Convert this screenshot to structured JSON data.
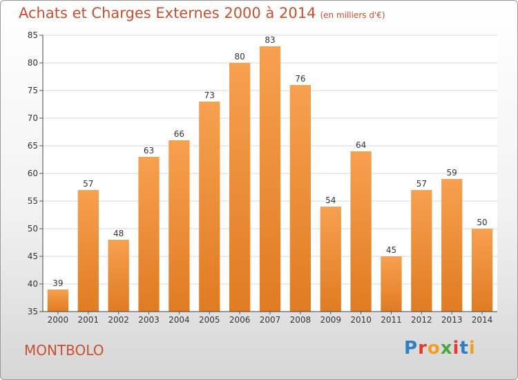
{
  "title": "Achats et Charges Externes 2000 à 2014",
  "unit": "(en milliers d'€)",
  "commune": "MONTBOLO",
  "logo": "Proxiti",
  "colors": {
    "bar_top": "#f7a04f",
    "bar_bottom": "#e07b22",
    "title": "#c94f2e",
    "grid": "#d8d8d8"
  },
  "chart_data": {
    "type": "bar",
    "title": "Achats et Charges Externes 2000 à 2014",
    "ylabel": "",
    "xlabel": "",
    "categories": [
      "2000",
      "2001",
      "2002",
      "2003",
      "2004",
      "2005",
      "2006",
      "2007",
      "2008",
      "2009",
      "2010",
      "2011",
      "2012",
      "2013",
      "2014"
    ],
    "values": [
      39,
      57,
      48,
      63,
      66,
      73,
      80,
      83,
      76,
      54,
      64,
      45,
      57,
      59,
      50
    ],
    "ylim": [
      35,
      85
    ],
    "yticks": [
      35,
      40,
      45,
      50,
      55,
      60,
      65,
      70,
      75,
      80,
      85
    ],
    "grid": true
  }
}
